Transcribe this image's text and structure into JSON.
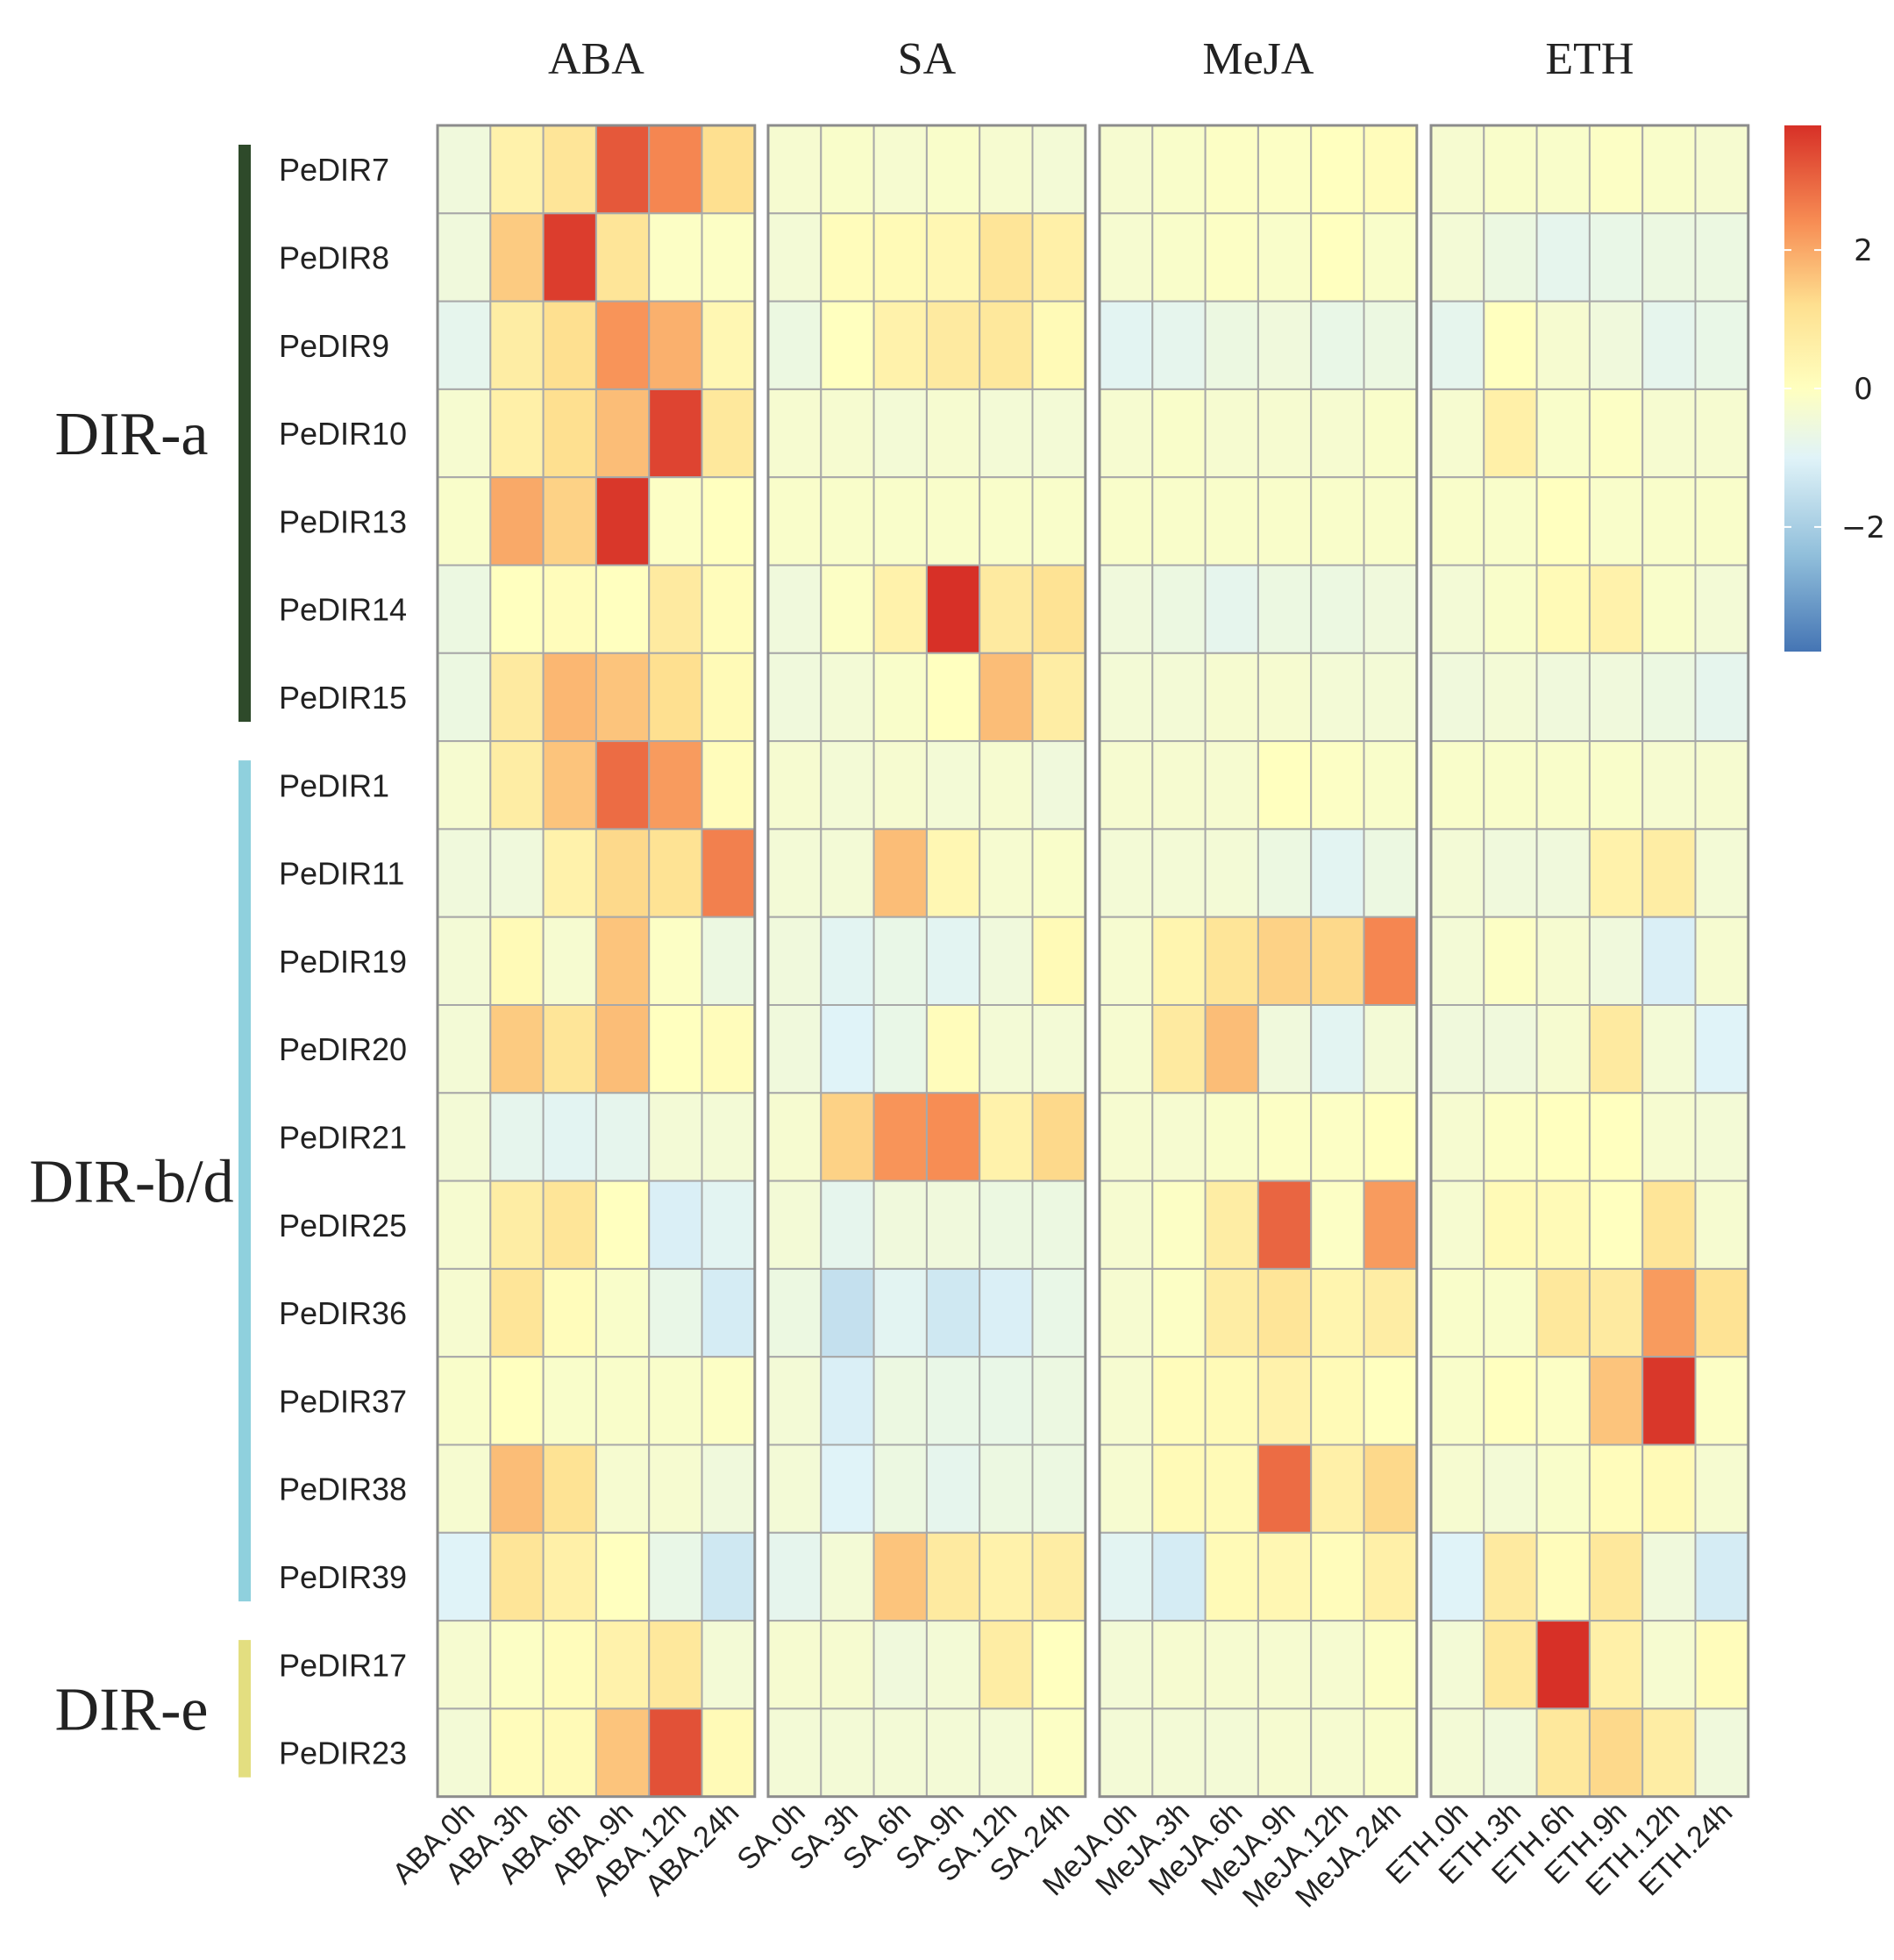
{
  "chart_data": {
    "type": "heatmap",
    "panels": [
      "ABA",
      "SA",
      "MeJA",
      "ETH"
    ],
    "columns": [
      "ABA.0h",
      "ABA.3h",
      "ABA.6h",
      "ABA.9h",
      "ABA.12h",
      "ABA.24h",
      "SA.0h",
      "SA.3h",
      "SA.6h",
      "SA.9h",
      "SA.12h",
      "SA.24h",
      "MeJA.0h",
      "MeJA.3h",
      "MeJA.6h",
      "MeJA.9h",
      "MeJA.12h",
      "MeJA.24h",
      "ETH.0h",
      "ETH.3h",
      "ETH.6h",
      "ETH.9h",
      "ETH.12h",
      "ETH.24h"
    ],
    "rows": [
      "PeDIR7",
      "PeDIR8",
      "PeDIR9",
      "PeDIR10",
      "PeDIR13",
      "PeDIR14",
      "PeDIR15",
      "PeDIR1",
      "PeDIR11",
      "PeDIR19",
      "PeDIR20",
      "PeDIR21",
      "PeDIR25",
      "PeDIR36",
      "PeDIR37",
      "PeDIR38",
      "PeDIR39",
      "PeDIR17",
      "PeDIR23"
    ],
    "groups": [
      {
        "name": "DIR-a",
        "first_row": 0,
        "last_row": 6,
        "color": "#2e4a2a"
      },
      {
        "name": "DIR-b/d",
        "first_row": 7,
        "last_row": 16,
        "color": "#8fd0dd"
      },
      {
        "name": "DIR-e",
        "first_row": 17,
        "last_row": 18,
        "color": "#e3de80"
      }
    ],
    "values": [
      [
        -0.5,
        0.5,
        1.0,
        3.2,
        2.5,
        1.2,
        -0.3,
        -0.2,
        -0.3,
        -0.2,
        -0.3,
        -0.4,
        -0.3,
        -0.2,
        -0.1,
        -0.1,
        0.0,
        0.1,
        -0.3,
        -0.2,
        -0.2,
        -0.1,
        -0.2,
        -0.3
      ],
      [
        -0.5,
        1.5,
        3.6,
        1.0,
        -0.1,
        -0.1,
        -0.4,
        0.1,
        0.2,
        0.3,
        1.0,
        0.6,
        -0.3,
        -0.2,
        -0.1,
        -0.2,
        0.0,
        -0.2,
        -0.4,
        -0.6,
        -0.8,
        -0.7,
        -0.6,
        -0.6
      ],
      [
        -0.8,
        0.7,
        1.2,
        2.3,
        1.9,
        0.3,
        -0.6,
        0.0,
        0.5,
        0.8,
        0.9,
        0.2,
        -0.9,
        -0.8,
        -0.6,
        -0.5,
        -0.7,
        -0.6,
        -0.8,
        0.0,
        -0.3,
        -0.5,
        -0.8,
        -0.7
      ],
      [
        -0.3,
        0.6,
        1.2,
        1.7,
        3.5,
        0.9,
        -0.3,
        -0.3,
        -0.4,
        -0.3,
        -0.4,
        -0.4,
        -0.3,
        -0.2,
        -0.3,
        -0.3,
        -0.3,
        -0.2,
        -0.3,
        0.6,
        -0.2,
        -0.1,
        -0.3,
        -0.3
      ],
      [
        -0.2,
        2.0,
        1.4,
        3.7,
        -0.1,
        0.0,
        -0.2,
        -0.2,
        -0.2,
        -0.2,
        -0.2,
        -0.2,
        -0.2,
        -0.2,
        -0.2,
        -0.2,
        -0.2,
        -0.2,
        -0.2,
        -0.2,
        0.0,
        -0.2,
        -0.2,
        -0.2
      ],
      [
        -0.6,
        0.0,
        0.1,
        0.0,
        0.8,
        0.1,
        -0.5,
        -0.1,
        0.5,
        3.8,
        0.8,
        1.1,
        -0.5,
        -0.6,
        -0.8,
        -0.6,
        -0.6,
        -0.5,
        -0.4,
        -0.2,
        0.2,
        0.5,
        -0.2,
        -0.4
      ],
      [
        -0.6,
        0.8,
        1.8,
        1.6,
        1.2,
        0.2,
        -0.5,
        -0.4,
        -0.2,
        0.0,
        1.7,
        0.7,
        -0.4,
        -0.4,
        -0.3,
        -0.3,
        -0.4,
        -0.4,
        -0.5,
        -0.4,
        -0.5,
        -0.5,
        -0.6,
        -0.8
      ],
      [
        -0.3,
        0.7,
        1.6,
        2.9,
        2.2,
        0.1,
        -0.3,
        -0.4,
        -0.3,
        -0.4,
        -0.3,
        -0.5,
        -0.3,
        -0.3,
        -0.3,
        0.0,
        -0.1,
        -0.2,
        -0.2,
        -0.2,
        -0.2,
        -0.2,
        -0.3,
        -0.3
      ],
      [
        -0.5,
        -0.5,
        0.5,
        1.3,
        1.1,
        2.6,
        -0.4,
        -0.4,
        1.7,
        0.3,
        -0.3,
        -0.2,
        -0.4,
        -0.4,
        -0.4,
        -0.6,
        -0.9,
        -0.6,
        -0.4,
        -0.5,
        -0.5,
        0.5,
        0.7,
        -0.4
      ],
      [
        -0.4,
        0.2,
        -0.3,
        1.6,
        -0.1,
        -0.6,
        -0.5,
        -0.9,
        -0.7,
        -0.9,
        -0.5,
        0.2,
        -0.3,
        0.4,
        1.0,
        1.4,
        1.3,
        2.5,
        -0.4,
        -0.1,
        -0.3,
        -0.5,
        -1.1,
        -0.3
      ],
      [
        -0.4,
        1.5,
        1.0,
        1.7,
        0.0,
        0.1,
        -0.5,
        -1.0,
        -0.7,
        0.1,
        -0.4,
        -0.4,
        -0.3,
        0.8,
        1.7,
        -0.5,
        -0.9,
        -0.4,
        -0.5,
        -0.5,
        -0.3,
        0.8,
        -0.4,
        -1.0
      ],
      [
        -0.4,
        -0.8,
        -0.9,
        -0.8,
        -0.4,
        -0.4,
        -0.3,
        1.4,
        2.3,
        2.4,
        0.5,
        1.3,
        -0.3,
        -0.3,
        -0.2,
        -0.1,
        -0.1,
        0.0,
        -0.3,
        -0.1,
        0.0,
        0.0,
        -0.3,
        -0.4
      ],
      [
        -0.3,
        0.7,
        1.0,
        0.0,
        -1.1,
        -0.9,
        -0.4,
        -0.8,
        -0.5,
        -0.5,
        -0.6,
        -0.6,
        -0.3,
        -0.1,
        0.7,
        3.0,
        -0.1,
        2.2,
        -0.3,
        0.2,
        0.2,
        0.0,
        1.0,
        -0.3
      ],
      [
        -0.3,
        1.0,
        0.1,
        -0.2,
        -0.7,
        -1.2,
        -0.6,
        -1.5,
        -0.9,
        -1.3,
        -1.1,
        -0.7,
        -0.3,
        -0.1,
        0.7,
        1.0,
        0.4,
        0.7,
        -0.2,
        -0.2,
        0.9,
        0.8,
        2.2,
        1.1
      ],
      [
        -0.2,
        0.0,
        -0.2,
        -0.2,
        -0.2,
        -0.1,
        -0.4,
        -1.1,
        -0.6,
        -0.7,
        -0.7,
        -0.6,
        -0.3,
        0.1,
        0.2,
        0.5,
        0.2,
        0.0,
        -0.2,
        0.0,
        -0.1,
        1.6,
        3.7,
        -0.1
      ],
      [
        -0.3,
        1.7,
        1.1,
        -0.3,
        -0.3,
        -0.5,
        -0.4,
        -1.0,
        -0.6,
        -0.8,
        -0.6,
        -0.6,
        -0.3,
        0.2,
        0.2,
        2.9,
        0.6,
        1.3,
        -0.3,
        -0.4,
        -0.2,
        0.1,
        0.2,
        -0.3
      ],
      [
        -1.0,
        1.0,
        0.6,
        0.0,
        -0.7,
        -1.3,
        -0.8,
        -0.4,
        1.6,
        0.8,
        0.5,
        0.7,
        -0.9,
        -1.2,
        0.2,
        0.3,
        0.1,
        0.6,
        -1.0,
        0.8,
        0.1,
        0.9,
        -0.5,
        -1.2
      ],
      [
        -0.3,
        -0.1,
        0.1,
        0.5,
        0.9,
        -0.4,
        -0.3,
        -0.3,
        -0.5,
        -0.4,
        0.7,
        0.0,
        -0.4,
        -0.3,
        -0.3,
        -0.3,
        -0.3,
        -0.1,
        -0.4,
        0.9,
        3.8,
        0.6,
        -0.3,
        0.1
      ],
      [
        -0.4,
        0.1,
        0.2,
        1.6,
        3.3,
        0.2,
        -0.4,
        -0.4,
        -0.4,
        -0.4,
        -0.4,
        -0.1,
        -0.4,
        -0.4,
        -0.4,
        -0.3,
        -0.3,
        -0.2,
        -0.4,
        -0.5,
        0.9,
        1.3,
        0.7,
        -0.5
      ]
    ],
    "color_scale": {
      "min": -3.8,
      "max": 3.8,
      "stops": [
        {
          "v": -3.8,
          "c": "#4575b4"
        },
        {
          "v": -2.4,
          "c": "#91bfdb"
        },
        {
          "v": -1.0,
          "c": "#e0f3f8"
        },
        {
          "v": 0.0,
          "c": "#ffffbf"
        },
        {
          "v": 1.2,
          "c": "#fee090"
        },
        {
          "v": 2.4,
          "c": "#f78d54"
        },
        {
          "v": 3.8,
          "c": "#d73027"
        }
      ],
      "ticks": [
        2,
        0,
        -2
      ],
      "tick_labels": [
        "2",
        "0",
        "−2"
      ]
    },
    "grid_color": "#a8a8a8",
    "panel_border_color": "#8c8c8c"
  }
}
